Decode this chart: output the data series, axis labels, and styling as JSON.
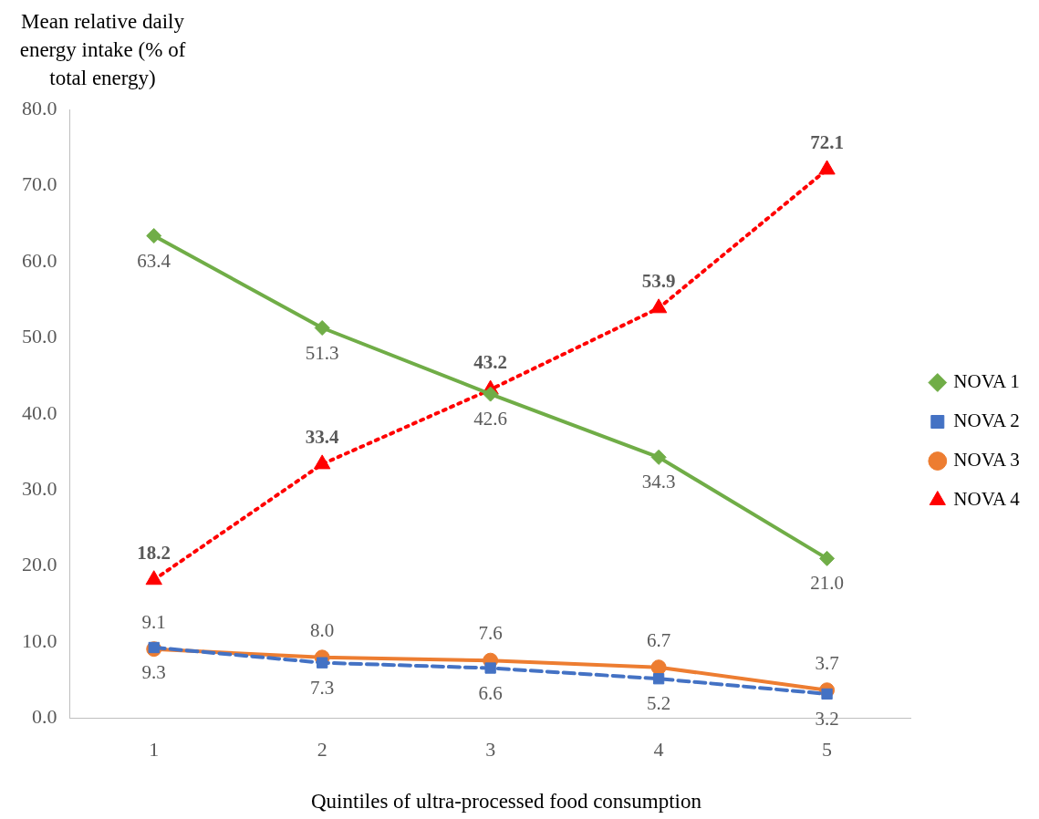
{
  "chart_data": {
    "type": "line",
    "ylabel": "Mean relative daily energy intake (% of total energy)",
    "xlabel": "Quintiles of ultra-processed food consumption",
    "categories": [
      "1",
      "2",
      "3",
      "4",
      "5"
    ],
    "ylim": [
      0,
      80
    ],
    "yticks": [
      {
        "value": 0,
        "label": "0.0"
      },
      {
        "value": 10,
        "label": "10.0"
      },
      {
        "value": 20,
        "label": "20.0"
      },
      {
        "value": 30,
        "label": "30.0"
      },
      {
        "value": 40,
        "label": "40.0"
      },
      {
        "value": 50,
        "label": "50.0"
      },
      {
        "value": 60,
        "label": "60.0"
      },
      {
        "value": 70,
        "label": "70.0"
      },
      {
        "value": 80,
        "label": "80.0"
      }
    ],
    "grid": false,
    "legend": "right",
    "series": [
      {
        "name": "NOVA 1",
        "color": "#70ad47",
        "marker": "diamond",
        "line_style": "solid",
        "values": [
          63.4,
          51.3,
          42.6,
          34.3,
          21.0
        ],
        "value_labels": [
          "63.4",
          "51.3",
          "42.6",
          "34.3",
          "21.0"
        ]
      },
      {
        "name": "NOVA 2",
        "color": "#4472c4",
        "marker": "square",
        "line_style": "dashed",
        "values": [
          9.3,
          7.3,
          6.6,
          5.2,
          3.2
        ],
        "value_labels": [
          "9.3",
          "7.3",
          "6.6",
          "5.2",
          "3.2"
        ]
      },
      {
        "name": "NOVA 3",
        "color": "#ed7d31",
        "marker": "circle",
        "line_style": "solid",
        "values": [
          9.1,
          8.0,
          7.6,
          6.7,
          3.7
        ],
        "value_labels": [
          "9.1",
          "8.0",
          "7.6",
          "6.7",
          "3.7"
        ]
      },
      {
        "name": "NOVA 4",
        "color": "#ff0000",
        "marker": "triangle",
        "line_style": "dotted",
        "values": [
          18.2,
          33.4,
          43.2,
          53.9,
          72.1
        ],
        "value_labels": [
          "18.2",
          "33.4",
          "43.2",
          "53.9",
          "72.1"
        ]
      }
    ]
  }
}
